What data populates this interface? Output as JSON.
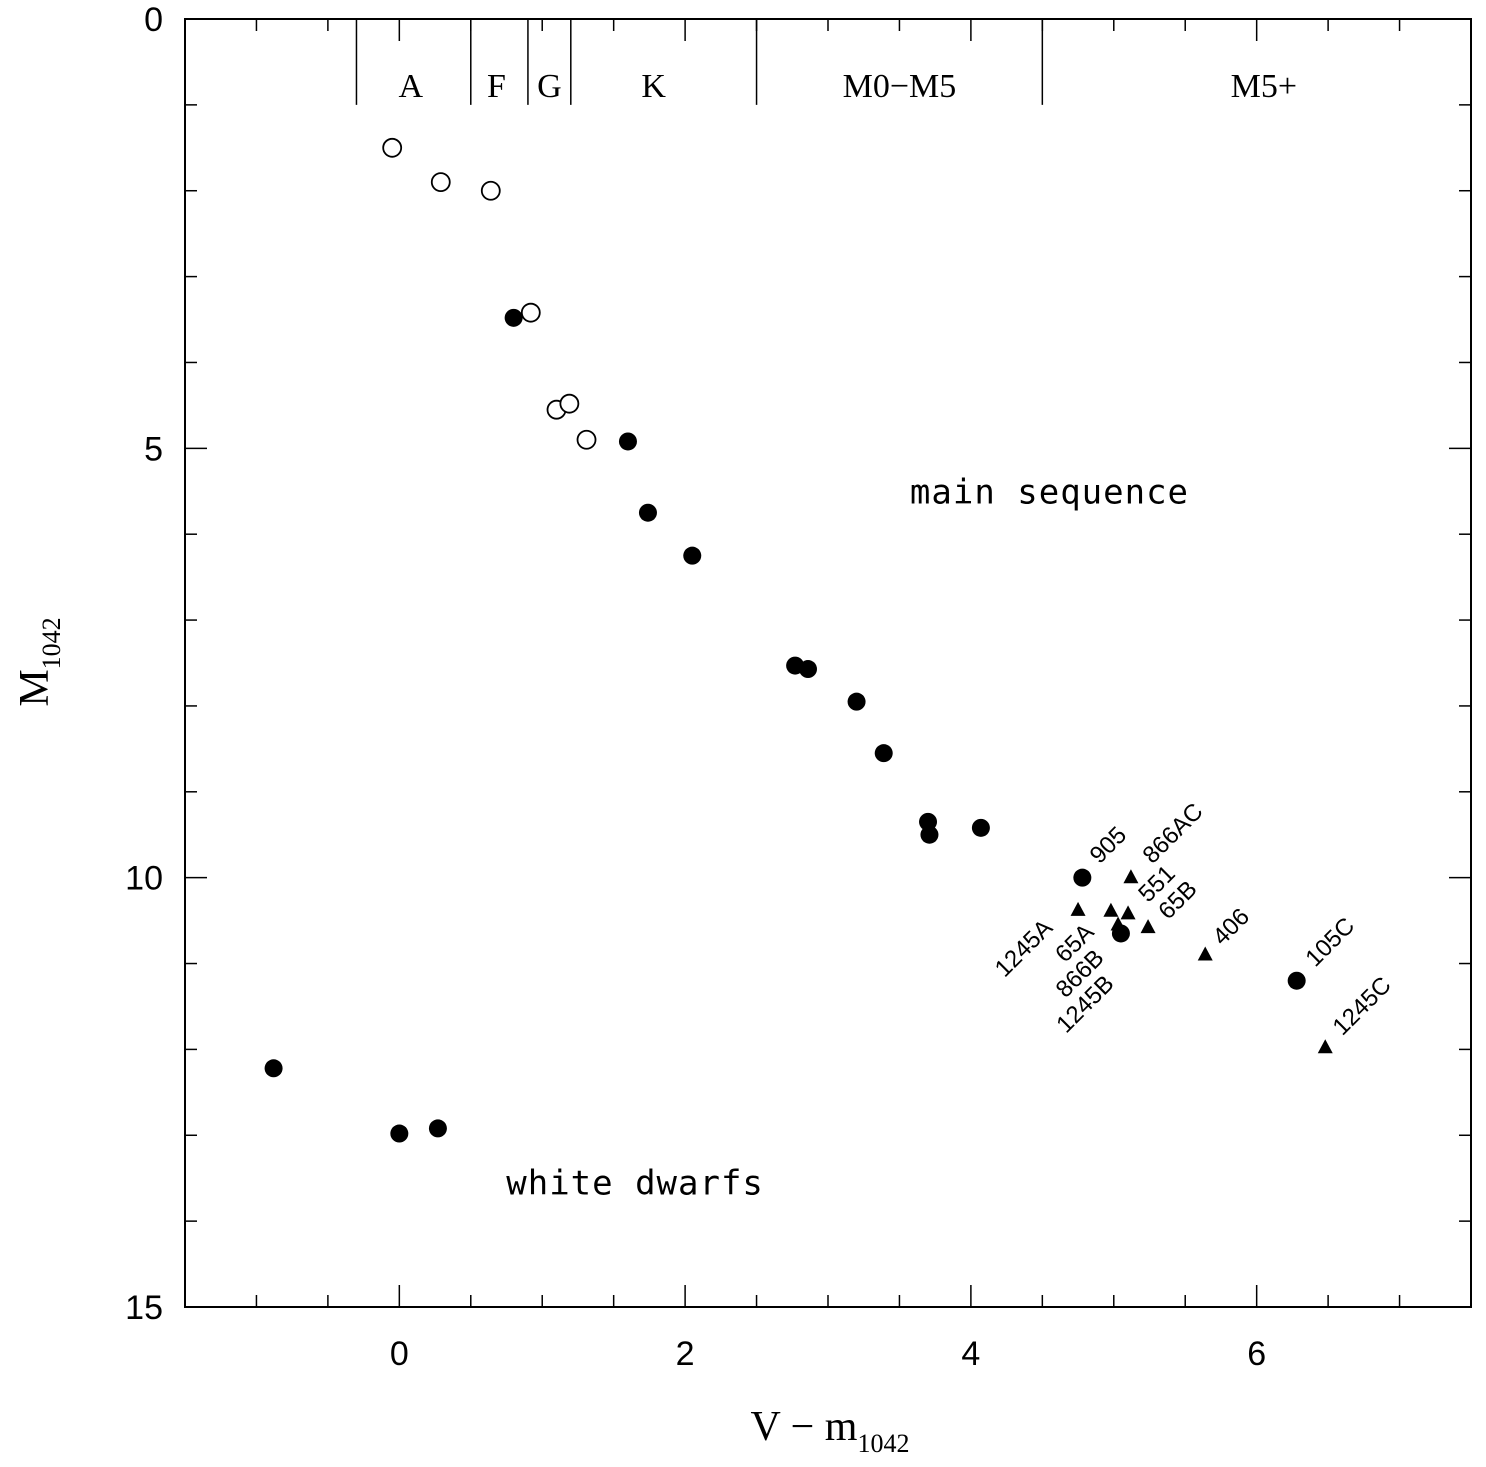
{
  "chart_data": {
    "type": "scatter",
    "xlabel": {
      "main": "V − m",
      "sub": "1042"
    },
    "ylabel": {
      "main": "M",
      "sub": "1042"
    },
    "xlim": [
      -1.5,
      7.5
    ],
    "ylim": [
      15,
      0
    ],
    "y_inverted": true,
    "x_ticks": [
      0,
      2,
      4,
      6
    ],
    "x_tick_labels": [
      "0",
      "2",
      "4",
      "6"
    ],
    "y_ticks": [
      0,
      5,
      10,
      15
    ],
    "y_tick_labels": [
      "0",
      "5",
      "10",
      "15"
    ],
    "grid": false,
    "legend": "none",
    "spectral_boundaries": [
      -0.3,
      0.5,
      0.9,
      1.2,
      2.5,
      4.5
    ],
    "spectral_classes": [
      {
        "label": "A",
        "x": 0.08
      },
      {
        "label": "F",
        "x": 0.68
      },
      {
        "label": "G",
        "x": 1.05
      },
      {
        "label": "K",
        "x": 1.78
      },
      {
        "label": "M0−M5",
        "x": 3.5
      },
      {
        "label": "M5+",
        "x": 6.05
      }
    ],
    "region_labels": [
      {
        "text": "main sequence",
        "x": 4.55,
        "y": 5.5
      },
      {
        "text": "white dwarfs",
        "x": 1.65,
        "y": 13.55
      }
    ],
    "series": [
      {
        "marker": "open-circle",
        "points": [
          {
            "x": -0.05,
            "y": 1.5
          },
          {
            "x": 0.29,
            "y": 1.9
          },
          {
            "x": 0.64,
            "y": 2.0
          },
          {
            "x": 0.92,
            "y": 3.42
          },
          {
            "x": 1.1,
            "y": 4.55
          },
          {
            "x": 1.19,
            "y": 4.48
          },
          {
            "x": 1.31,
            "y": 4.9
          }
        ]
      },
      {
        "marker": "filled-circle",
        "points": [
          {
            "x": 0.8,
            "y": 3.48
          },
          {
            "x": 1.6,
            "y": 4.92
          },
          {
            "x": 1.74,
            "y": 5.75
          },
          {
            "x": 2.05,
            "y": 6.25
          },
          {
            "x": 2.77,
            "y": 7.53
          },
          {
            "x": 2.86,
            "y": 7.57
          },
          {
            "x": 3.2,
            "y": 7.95
          },
          {
            "x": 3.39,
            "y": 8.55
          },
          {
            "x": 3.7,
            "y": 9.35
          },
          {
            "x": 3.71,
            "y": 9.5
          },
          {
            "x": 4.07,
            "y": 9.42
          },
          {
            "x": 4.78,
            "y": 10.0
          },
          {
            "x": 5.05,
            "y": 10.65
          },
          {
            "x": 6.28,
            "y": 11.2
          },
          {
            "x": -0.88,
            "y": 12.22
          },
          {
            "x": 0.0,
            "y": 12.98
          },
          {
            "x": 0.27,
            "y": 12.92
          }
        ]
      },
      {
        "marker": "filled-triangle",
        "points": [
          {
            "x": 4.75,
            "y": 10.38
          },
          {
            "x": 4.98,
            "y": 10.39
          },
          {
            "x": 5.03,
            "y": 10.55
          },
          {
            "x": 5.1,
            "y": 10.42
          },
          {
            "x": 5.12,
            "y": 10.0
          },
          {
            "x": 5.24,
            "y": 10.58
          },
          {
            "x": 5.64,
            "y": 10.9
          },
          {
            "x": 6.48,
            "y": 11.98
          }
        ]
      }
    ],
    "annotations": [
      {
        "text": "905",
        "x": 4.9,
        "y": 9.85
      },
      {
        "text": "866AC",
        "x": 5.27,
        "y": 9.85
      },
      {
        "text": "551",
        "x": 5.24,
        "y": 10.3
      },
      {
        "text": "65B",
        "x": 5.38,
        "y": 10.5
      },
      {
        "text": "406",
        "x": 5.76,
        "y": 10.8
      },
      {
        "text": "105C",
        "x": 6.41,
        "y": 11.05
      },
      {
        "text": "1245C",
        "x": 6.6,
        "y": 11.85
      },
      {
        "text": "1245A",
        "x": 4.58,
        "y": 10.6
      },
      {
        "text": "65A",
        "x": 4.87,
        "y": 10.65
      },
      {
        "text": "866B",
        "x": 4.94,
        "y": 10.95
      },
      {
        "text": "1245B",
        "x": 5.01,
        "y": 11.25
      }
    ]
  }
}
